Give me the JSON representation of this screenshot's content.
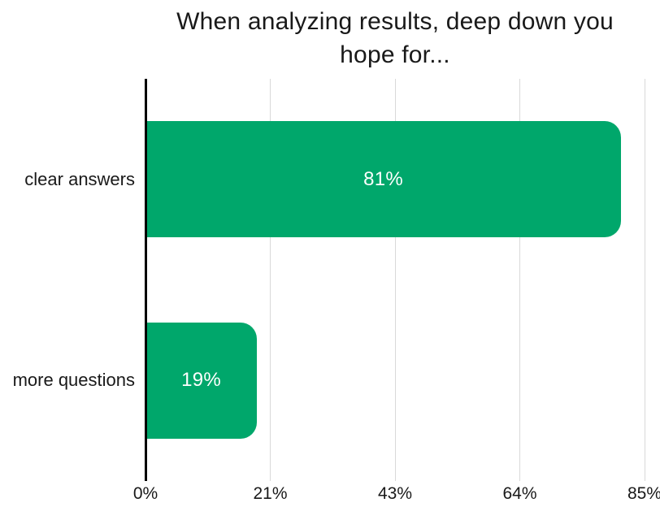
{
  "chart_data": {
    "type": "bar",
    "orientation": "horizontal",
    "title": "When analyzing results, deep down you hope for...",
    "title_lines": [
      "When analyzing results, deep down you",
      "hope for..."
    ],
    "categories": [
      "clear answers",
      "more questions"
    ],
    "values": [
      81,
      19
    ],
    "value_labels": [
      "81%",
      "19%"
    ],
    "xlim": [
      0,
      85
    ],
    "x_ticks": [
      {
        "value": 0,
        "label": "0%"
      },
      {
        "value": 21.25,
        "label": "21%"
      },
      {
        "value": 42.5,
        "label": "43%"
      },
      {
        "value": 63.75,
        "label": "64%"
      },
      {
        "value": 85,
        "label": "85%"
      }
    ],
    "grid": true,
    "legend": false,
    "xlabel": "",
    "ylabel": "",
    "colors": {
      "bar": "#00A76B",
      "value_label": "#ffffff",
      "axis": "#000000",
      "gridline": "#D9D9D9",
      "text": "#191919",
      "background": "#ffffff"
    }
  }
}
